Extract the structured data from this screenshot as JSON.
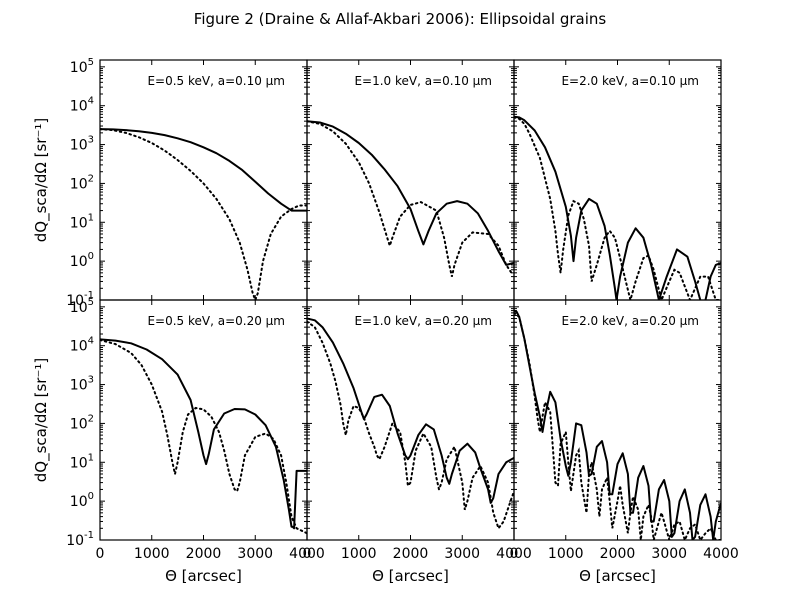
{
  "chart_data": {
    "type": "line",
    "title": "Figure 2 (Draine & Allaf-Akbari 2006): Ellipsoidal grains",
    "xlabel": "Θ [arcsec]",
    "ylabel": "dQ_sca/dΩ [sr⁻¹]",
    "xlim": [
      0,
      4000
    ],
    "ylim": [
      0.1,
      150000
    ],
    "yscale": "log",
    "x_ticks": [
      0,
      1000,
      2000,
      3000,
      4000
    ],
    "y_tick_base": "10",
    "y_tick_exponents": [
      "-1",
      "0",
      "1",
      "2",
      "3",
      "4",
      "5"
    ],
    "panels": [
      {
        "label": "E=0.5 keV, a=0.10 μm",
        "series": [
          {
            "style": "solid",
            "x": [
              0,
              250,
              500,
              750,
              1000,
              1250,
              1500,
              1750,
              2000,
              2250,
              2500,
              2750,
              3000,
              3250,
              3500,
              3700,
              3800,
              3850,
              4000
            ],
            "y": [
              2500,
              2450,
              2350,
              2200,
              2000,
              1750,
              1450,
              1150,
              850,
              600,
              380,
              220,
              110,
              55,
              30,
              20,
              20,
              20,
              20
            ]
          },
          {
            "style": "dotted",
            "x": [
              0,
              250,
              500,
              750,
              1000,
              1250,
              1500,
              1750,
              2000,
              2250,
              2500,
              2700,
              2850,
              2950,
              3000,
              3050,
              3150,
              3300,
              3500,
              3700,
              3850,
              4000
            ],
            "y": [
              2500,
              2350,
              2000,
              1550,
              1100,
              700,
              400,
              210,
              100,
              40,
              12,
              3,
              0.6,
              0.15,
              0.1,
              0.15,
              1,
              5,
              14,
              22,
              27,
              27
            ]
          }
        ]
      },
      {
        "label": "E=1.0 keV, a=0.10 μm",
        "series": [
          {
            "style": "solid",
            "x": [
              0,
              250,
              500,
              750,
              1000,
              1250,
              1500,
              1750,
              2000,
              2150,
              2250,
              2350,
              2500,
              2700,
              2900,
              3100,
              3300,
              3500,
              3700,
              3850,
              4000
            ],
            "y": [
              4000,
              3700,
              2900,
              1900,
              1100,
              550,
              230,
              85,
              22,
              6,
              2.7,
              6,
              17,
              30,
              35,
              30,
              17,
              6,
              1.8,
              0.8,
              0.9
            ]
          },
          {
            "style": "dotted",
            "x": [
              0,
              250,
              500,
              750,
              1000,
              1200,
              1400,
              1550,
              1600,
              1650,
              1800,
              2000,
              2200,
              2500,
              2650,
              2750,
              2800,
              2850,
              3000,
              3200,
              3500,
              3700,
              3850,
              3950,
              4000
            ],
            "y": [
              4000,
              3400,
              2200,
              1050,
              350,
              100,
              18,
              4,
              2.5,
              4,
              14,
              28,
              33,
              20,
              4,
              0.8,
              0.4,
              0.8,
              3,
              5.5,
              5,
              2.5,
              0.8,
              0.5,
              0.5
            ]
          }
        ]
      },
      {
        "label": "E=2.0 keV, a=0.10 μm",
        "series": [
          {
            "style": "solid",
            "x": [
              0,
              100,
              200,
              400,
              600,
              800,
              1000,
              1100,
              1150,
              1200,
              1300,
              1450,
              1600,
              1750,
              1850,
              1950,
              1980,
              2050,
              2200,
              2350,
              2500,
              2650,
              2800,
              2950,
              3150,
              3350,
              3500,
              3600,
              3650,
              3700,
              3800,
              3900,
              4000
            ],
            "y": [
              5200,
              5000,
              4200,
              2300,
              850,
              200,
              25,
              4.5,
              1,
              4,
              20,
              40,
              30,
              8,
              1.5,
              0.2,
              0.1,
              0.4,
              3,
              7,
              4,
              0.8,
              0.1,
              0.4,
              2,
              1.3,
              0.3,
              0.1,
              0.05,
              0.1,
              0.4,
              0.8,
              0.9
            ]
          },
          {
            "style": "dotted",
            "x": [
              0,
              100,
              200,
              300,
              500,
              700,
              800,
              850,
              900,
              950,
              1050,
              1150,
              1250,
              1350,
              1450,
              1500,
              1600,
              1750,
              1850,
              1950,
              2050,
              2250,
              2350,
              2500,
              2600,
              2700,
              2850,
              3000,
              3100,
              3200,
              3400,
              3600,
              3750,
              3900,
              4000
            ],
            "y": [
              5000,
              4600,
              3400,
              1900,
              450,
              40,
              6,
              1.5,
              0.5,
              2,
              15,
              35,
              30,
              12,
              2.5,
              0.3,
              0.8,
              4,
              6,
              4,
              1.2,
              0.1,
              0.3,
              1.2,
              1.4,
              0.6,
              0.1,
              0.3,
              0.6,
              0.5,
              0.1,
              0.4,
              0.4,
              0.1,
              0.1
            ]
          }
        ]
      },
      {
        "label": "E=0.5 keV, a=0.20 μm",
        "series": [
          {
            "style": "solid",
            "x": [
              0,
              300,
              600,
              900,
              1200,
              1500,
              1750,
              1900,
              2000,
              2050,
              2100,
              2200,
              2400,
              2600,
              2800,
              3000,
              3200,
              3400,
              3550,
              3650,
              3700,
              3720,
              3750,
              3800,
              4000
            ],
            "y": [
              14500,
              13500,
              11500,
              8000,
              4500,
              1800,
              400,
              60,
              15,
              9,
              16,
              70,
              180,
              235,
              230,
              170,
              90,
              25,
              3.5,
              0.6,
              0.22,
              0.22,
              0.2,
              6,
              6
            ]
          },
          {
            "style": "dotted",
            "x": [
              0,
              300,
              600,
              800,
              1000,
              1200,
              1300,
              1400,
              1450,
              1500,
              1600,
              1700,
              1850,
              2000,
              2150,
              2300,
              2400,
              2500,
              2600,
              2650,
              2700,
              2800,
              3000,
              3200,
              3350,
              3500,
              3600,
              3700,
              3800,
              4000
            ],
            "y": [
              14000,
              11000,
              6500,
              3200,
              1000,
              200,
              50,
              10,
              5,
              10,
              60,
              170,
              250,
              230,
              150,
              60,
              20,
              5,
              2,
              1.8,
              3,
              15,
              45,
              55,
              40,
              15,
              3,
              0.4,
              0.2,
              0.15
            ]
          }
        ]
      },
      {
        "label": "E=1.0 keV, a=0.20 μm",
        "series": [
          {
            "style": "solid",
            "x": [
              0,
              150,
              300,
              500,
              700,
              900,
              1050,
              1100,
              1150,
              1300,
              1450,
              1600,
              1750,
              1900,
              1950,
              2000,
              2150,
              2300,
              2450,
              2600,
              2700,
              2750,
              2800,
              2950,
              3100,
              3250,
              3350,
              3500,
              3550,
              3600,
              3700,
              3850,
              4000
            ],
            "y": [
              50000,
              45000,
              30000,
              12000,
              3500,
              800,
              200,
              130,
              170,
              480,
              550,
              280,
              55,
              15,
              12,
              15,
              50,
              95,
              70,
              15,
              4,
              2.8,
              5,
              20,
              30,
              18,
              7,
              2,
              0.9,
              1.2,
              5,
              10,
              13
            ]
          },
          {
            "style": "dotted",
            "x": [
              0,
              150,
              300,
              450,
              550,
              650,
              700,
              750,
              800,
              900,
              1000,
              1100,
              1200,
              1300,
              1350,
              1400,
              1500,
              1650,
              1800,
              1900,
              1950,
              2000,
              2100,
              2250,
              2400,
              2500,
              2550,
              2600,
              2700,
              2850,
              3000,
              3050,
              3100,
              3200,
              3350,
              3500,
              3600,
              3700,
              3800,
              4000
            ],
            "y": [
              42000,
              30000,
              12000,
              3500,
              1200,
              300,
              100,
              50,
              120,
              280,
              250,
              140,
              55,
              25,
              15,
              12,
              25,
              100,
              60,
              10,
              2.5,
              3,
              20,
              55,
              25,
              4,
              2,
              3,
              12,
              25,
              3,
              0.6,
              1,
              4,
              8,
              3,
              0.5,
              0.2,
              0.3,
              1.8
            ]
          }
        ]
      },
      {
        "label": "E=2.0 keV, a=0.20 μm",
        "series": [
          {
            "style": "solid",
            "x": [
              0,
              50,
              100,
              200,
              300,
              400,
              500,
              550,
              600,
              700,
              800,
              900,
              1000,
              1050,
              1100,
              1200,
              1300,
              1400,
              1450,
              1500,
              1600,
              1700,
              1800,
              1850,
              1900,
              2000,
              2100,
              2200,
              2250,
              2300,
              2400,
              2500,
              2600,
              2650,
              2700,
              2800,
              2900,
              3000,
              3050,
              3100,
              3200,
              3300,
              3400,
              3450,
              3500,
              3600,
              3700,
              3800,
              3850,
              3900,
              4000
            ],
            "y": [
              80000,
              75000,
              55000,
              15000,
              3000,
              600,
              150,
              60,
              150,
              650,
              350,
              40,
              8,
              4.5,
              10,
              100,
              90,
              18,
              4.5,
              5,
              25,
              35,
              10,
              1.5,
              1.5,
              9,
              17,
              5,
              0.5,
              0.5,
              4,
              8,
              2.5,
              0.3,
              0.3,
              2,
              3.5,
              1,
              0.12,
              0.15,
              1,
              2,
              0.5,
              0.1,
              0.12,
              0.8,
              1.5,
              0.4,
              0.1,
              0.3,
              0.9
            ]
          },
          {
            "style": "dotted",
            "x": [
              0,
              100,
              200,
              300,
              400,
              450,
              500,
              550,
              600,
              700,
              750,
              800,
              850,
              900,
              1000,
              1050,
              1100,
              1200,
              1250,
              1300,
              1400,
              1450,
              1500,
              1600,
              1650,
              1700,
              1800,
              1850,
              1900,
              2000,
              2050,
              2100,
              2200,
              2250,
              2300,
              2400,
              2450,
              2500,
              2600,
              2650,
              2700,
              2800,
              2850,
              2900,
              3000,
              3100,
              3200,
              3300,
              3400,
              3500,
              3600,
              3700,
              3800,
              3900,
              4000
            ],
            "y": [
              70000,
              55000,
              15000,
              3500,
              500,
              150,
              60,
              150,
              350,
              200,
              25,
              3,
              2.5,
              30,
              60,
              10,
              1.8,
              15,
              20,
              3,
              0.5,
              5,
              10,
              2,
              0.4,
              2,
              4,
              1,
              0.2,
              1,
              2.5,
              0.8,
              0.15,
              0.5,
              1.3,
              0.6,
              0.1,
              0.4,
              0.8,
              0.4,
              0.1,
              0.3,
              0.5,
              0.3,
              0.1,
              0.25,
              0.3,
              0.1,
              0.2,
              0.25,
              0.1,
              0.15,
              0.2,
              0.1,
              0.1
            ]
          }
        ]
      }
    ]
  }
}
